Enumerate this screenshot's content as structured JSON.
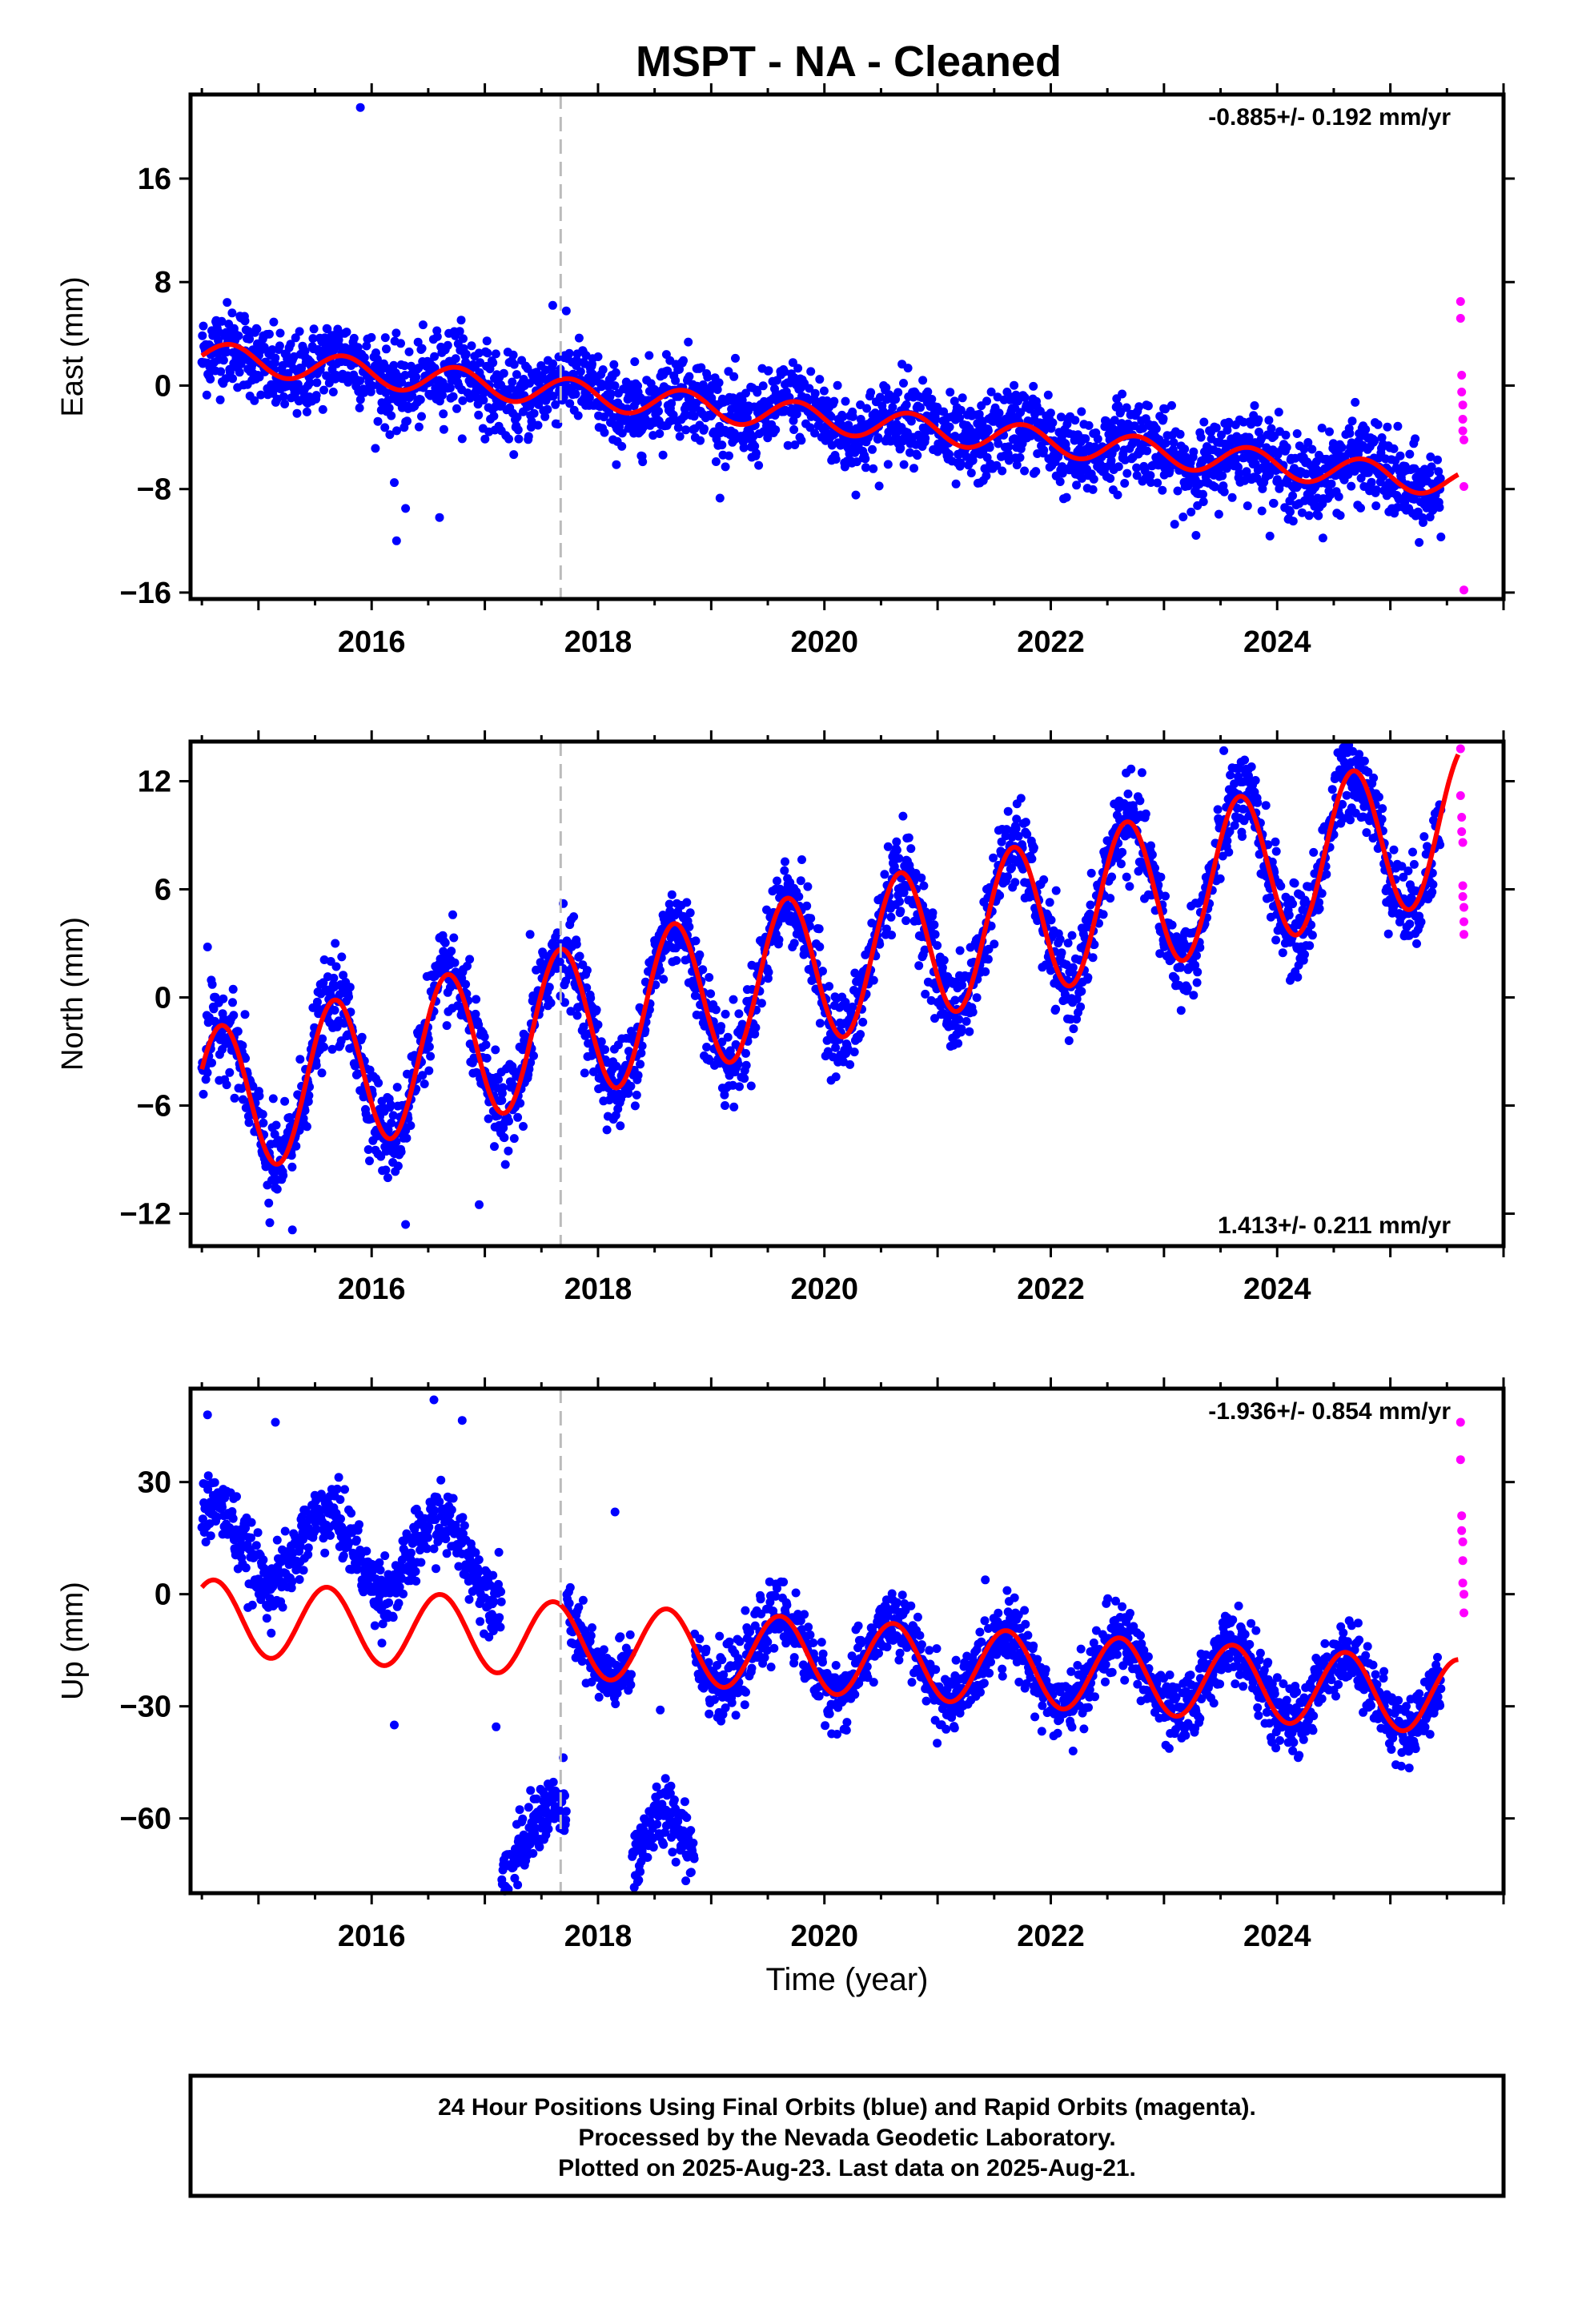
{
  "title": "MSPT  - NA - Cleaned",
  "xlabel": "Time (year)",
  "colors": {
    "final_orbits": "#0000ff",
    "rapid_orbits": "#ff00ff",
    "model": "#ff0000",
    "event_line": "#bbbbbb",
    "frame": "#000000"
  },
  "footer": {
    "line1": "24 Hour Positions Using Final Orbits (blue) and Rapid Orbits (magenta).",
    "line2": "Processed by the Nevada Geodetic Laboratory.",
    "line3": "Plotted on 2025-Aug-23. Last data on 2025-Aug-21."
  },
  "chart_data": [
    {
      "type": "scatter",
      "name": "east",
      "ylabel": "East (mm)",
      "rate_text": "-0.885+/- 0.192 mm/yr",
      "rate_position": "top-right",
      "xlim": [
        2014.4,
        2026.0
      ],
      "ylim": [
        -16.5,
        22.5
      ],
      "yticks": [
        16,
        8,
        0,
        -8,
        -16
      ],
      "ytick_labels": [
        "16",
        "8",
        "0",
        "−8",
        "−16"
      ],
      "xticks": [
        2016,
        2018,
        2020,
        2022,
        2024
      ],
      "xtick_labels": [
        "2016",
        "2018",
        "2020",
        "2022",
        "2024"
      ],
      "event_line_x": 2017.67,
      "trend": {
        "start_year": 2014.5,
        "start_value": 2.3,
        "rate": -0.885,
        "annual_amp": 1.1,
        "annual_phase": 0.0
      },
      "noise_sd": 1.6,
      "data_start": 2014.5,
      "data_end": 2025.45,
      "gaps": [],
      "segments": [],
      "outliers": [
        [
          2015.9,
          21.5
        ],
        [
          2016.22,
          -12.0
        ],
        [
          2016.3,
          -9.5
        ],
        [
          2016.6,
          -10.2
        ],
        [
          2016.2,
          -7.5
        ],
        [
          2017.6,
          6.2
        ]
      ],
      "rapid_points": [
        [
          2025.62,
          6.5
        ],
        [
          2025.62,
          5.2
        ],
        [
          2025.63,
          0.8
        ],
        [
          2025.63,
          -0.5
        ],
        [
          2025.64,
          -1.5
        ],
        [
          2025.64,
          -2.6
        ],
        [
          2025.64,
          -3.5
        ],
        [
          2025.65,
          -4.2
        ],
        [
          2025.65,
          -7.8
        ],
        [
          2025.65,
          -15.8
        ]
      ]
    },
    {
      "type": "scatter",
      "name": "north",
      "ylabel": "North (mm)",
      "rate_text": "1.413+/- 0.211 mm/yr",
      "rate_position": "bottom-right",
      "xlim": [
        2014.4,
        2026.0
      ],
      "ylim": [
        -13.8,
        14.2
      ],
      "yticks": [
        12,
        6,
        0,
        -6,
        -12
      ],
      "ytick_labels": [
        "12",
        "6",
        "0",
        "−6",
        "−12"
      ],
      "xticks": [
        2016,
        2018,
        2020,
        2022,
        2024
      ],
      "xtick_labels": [
        "2016",
        "2018",
        "2020",
        "2022",
        "2024"
      ],
      "event_line_x": 2017.67,
      "trend": {
        "start_year": 2014.5,
        "start_value": -6.0,
        "rate": 1.413,
        "annual_amp": 4.2,
        "annual_phase": 0.5
      },
      "noise_sd": 1.2,
      "data_start": 2014.5,
      "data_end": 2025.45,
      "gaps": [],
      "segments": [],
      "outliers": [
        [
          2014.55,
          2.8
        ],
        [
          2015.1,
          -12.5
        ],
        [
          2015.3,
          -12.9
        ],
        [
          2016.3,
          -12.6
        ],
        [
          2016.6,
          3.3
        ],
        [
          2016.95,
          -11.5
        ],
        [
          2017.4,
          3.5
        ]
      ],
      "rapid_points": [
        [
          2025.62,
          13.8
        ],
        [
          2025.62,
          11.2
        ],
        [
          2025.63,
          10.0
        ],
        [
          2025.63,
          9.2
        ],
        [
          2025.64,
          8.6
        ],
        [
          2025.64,
          6.2
        ],
        [
          2025.64,
          5.6
        ],
        [
          2025.65,
          5.0
        ],
        [
          2025.65,
          4.2
        ],
        [
          2025.65,
          3.5
        ]
      ]
    },
    {
      "type": "scatter",
      "name": "up",
      "ylabel": "Up (mm)",
      "rate_text": "-1.936+/- 0.854 mm/yr",
      "rate_position": "top-right",
      "xlim": [
        2014.4,
        2026.0
      ],
      "ylim": [
        -80,
        55
      ],
      "yticks": [
        30,
        0,
        -30,
        -60
      ],
      "ytick_labels": [
        "30",
        "0",
        "−30",
        "−60"
      ],
      "xticks": [
        2016,
        2018,
        2020,
        2022,
        2024
      ],
      "xtick_labels": [
        "2016",
        "2018",
        "2020",
        "2022",
        "2024"
      ],
      "event_line_x": 2017.67,
      "trend": {
        "start_year": 2014.5,
        "start_value": -6.0,
        "rate": -1.936,
        "annual_amp": 10.0,
        "annual_phase": 0.9
      },
      "noise_sd": 4.5,
      "data_start": 2014.5,
      "data_end": 2025.45,
      "gaps": [
        [
          2017.15,
          2017.72
        ],
        [
          2018.3,
          2018.85
        ]
      ],
      "segments": [
        {
          "from": 2014.5,
          "to": 2017.15,
          "offset": 20.0
        },
        {
          "from": 2017.15,
          "to": 2017.72,
          "offset": -55.0
        },
        {
          "from": 2017.72,
          "to": 2018.3,
          "offset": 0.0
        },
        {
          "from": 2018.3,
          "to": 2018.85,
          "offset": -55.0
        },
        {
          "from": 2018.85,
          "to": 2025.45,
          "offset": 0.0
        }
      ],
      "outliers": [
        [
          2014.55,
          48.0
        ],
        [
          2015.15,
          46.0
        ],
        [
          2016.55,
          52.0
        ],
        [
          2016.8,
          46.5
        ],
        [
          2016.2,
          -35.0
        ],
        [
          2017.1,
          -35.5
        ],
        [
          2018.15,
          22.0
        ],
        [
          2018.35,
          -77.0
        ],
        [
          2018.55,
          -31.0
        ],
        [
          2025.35,
          -28.5
        ]
      ],
      "rapid_points": [
        [
          2025.62,
          46.0
        ],
        [
          2025.62,
          36.0
        ],
        [
          2025.63,
          21.0
        ],
        [
          2025.63,
          17.0
        ],
        [
          2025.64,
          14.0
        ],
        [
          2025.64,
          9.0
        ],
        [
          2025.64,
          3.0
        ],
        [
          2025.65,
          0.0
        ],
        [
          2025.65,
          -5.0
        ]
      ]
    }
  ]
}
